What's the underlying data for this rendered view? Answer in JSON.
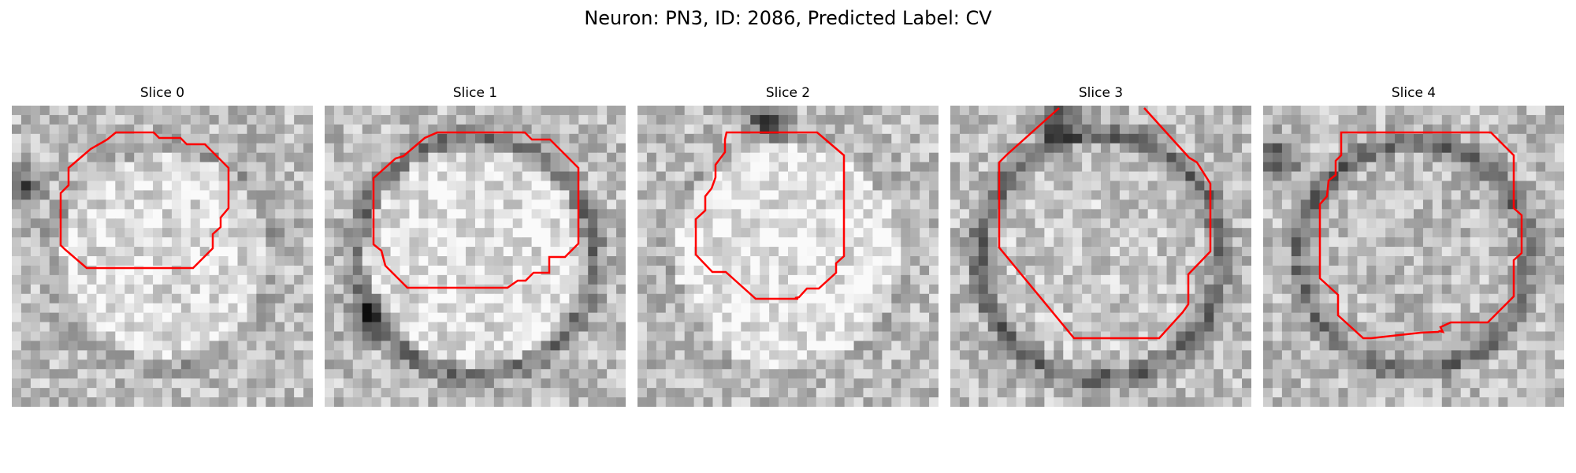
{
  "figure": {
    "title": "Neuron: PN3, ID: 2086, Predicted Label: CV",
    "outline_color": "#ff0000",
    "colormap": "gray",
    "panels": [
      {
        "title": "Slice 0",
        "seed": 11,
        "ring_strength": 0.1,
        "ring_radius": 0.44,
        "center_brightness": 0.86,
        "dark_blob": [
          0.03,
          0.27
        ]
      },
      {
        "title": "Slice 1",
        "seed": 27,
        "ring_strength": 0.28,
        "ring_radius": 0.47,
        "center_brightness": 0.88,
        "dark_blob": [
          0.15,
          0.7
        ]
      },
      {
        "title": "Slice 2",
        "seed": 43,
        "ring_strength": 0.05,
        "ring_radius": 0.48,
        "center_brightness": 0.9,
        "dark_blob": [
          0.43,
          0.05
        ]
      },
      {
        "title": "Slice 3",
        "seed": 59,
        "ring_strength": 0.34,
        "ring_radius": 0.48,
        "center_brightness": 0.78,
        "dark_blob": [
          0.35,
          0.05
        ]
      },
      {
        "title": "Slice 4",
        "seed": 71,
        "ring_strength": 0.32,
        "ring_radius": 0.45,
        "center_brightness": 0.74,
        "dark_blob": [
          0.05,
          0.18
        ]
      }
    ]
  }
}
